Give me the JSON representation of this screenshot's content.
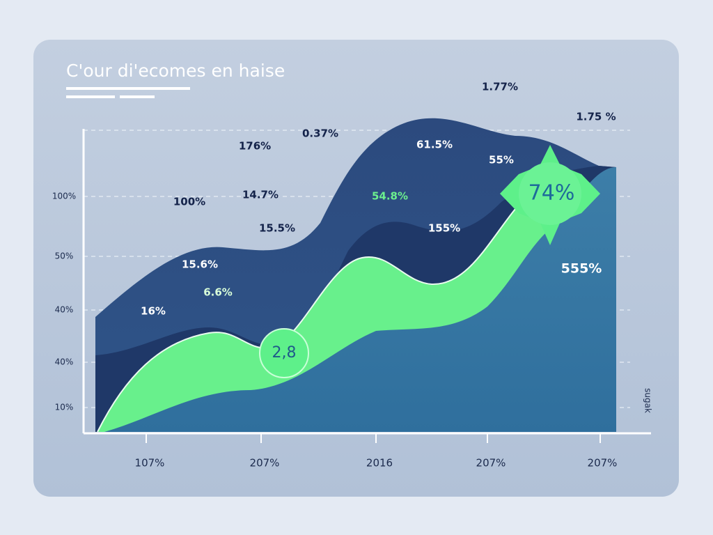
{
  "title": "C'our di'ecomes en haise",
  "y_labels": [
    "100%",
    "50%",
    "40%",
    "40%",
    "10%"
  ],
  "x_labels": [
    "107%",
    "207%",
    "2016",
    "207%",
    "207%"
  ],
  "side_label": "sugak",
  "annotations": [
    "1.77%",
    "1.75 %",
    "0.37%",
    "176%",
    "61.5%",
    "55%",
    "100%",
    "14.7%",
    "54.8%",
    "15.5%",
    "155%",
    "15.6%",
    "555%",
    "6.6%",
    "16%"
  ],
  "badges": [
    "2,8",
    "74%"
  ]
}
